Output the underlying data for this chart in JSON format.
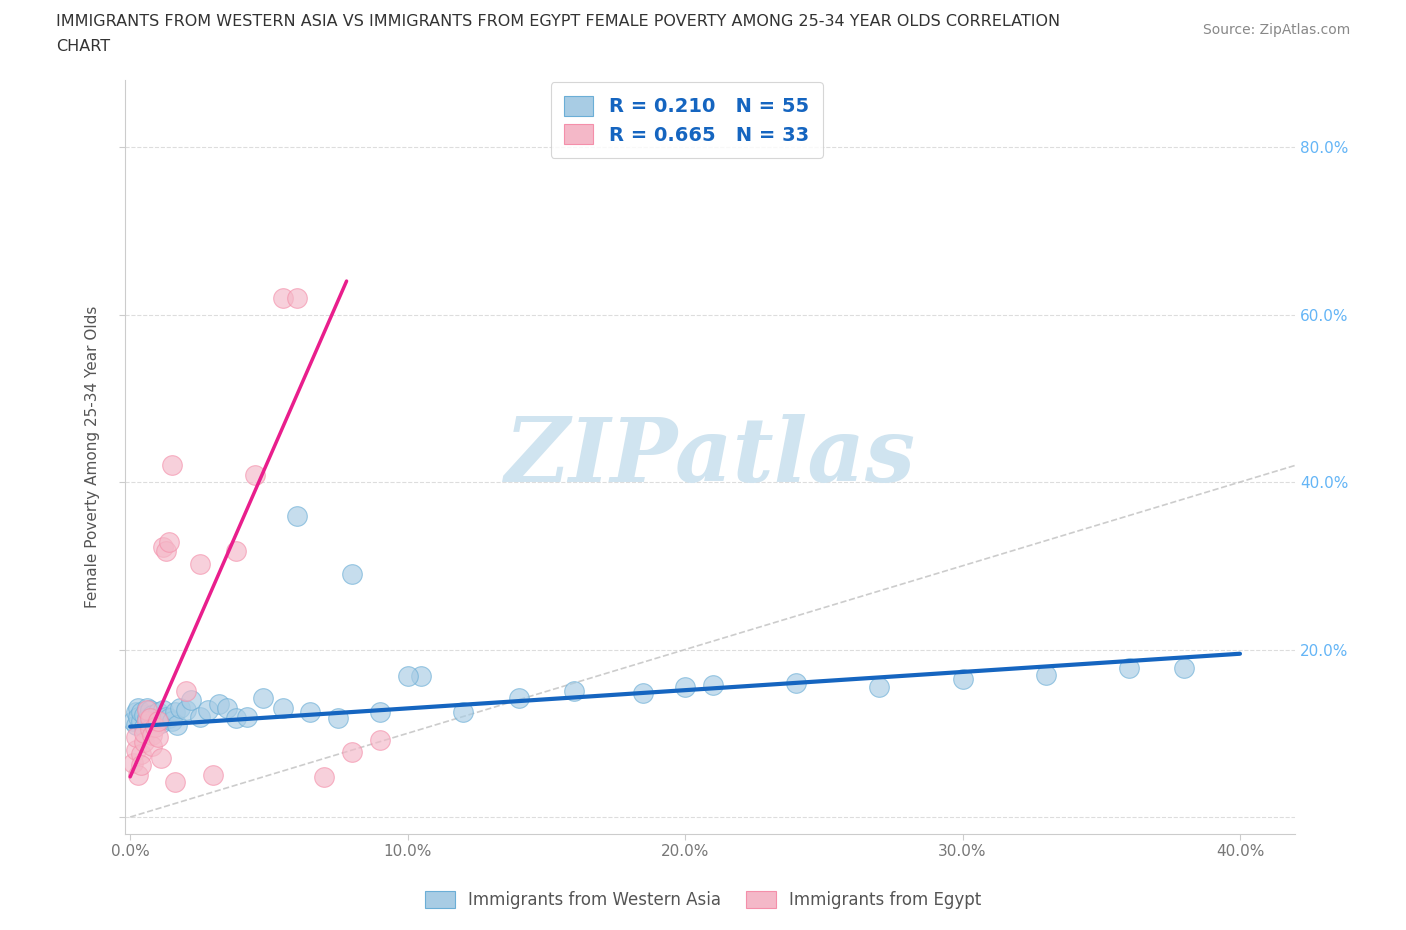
{
  "title_line1": "IMMIGRANTS FROM WESTERN ASIA VS IMMIGRANTS FROM EGYPT FEMALE POVERTY AMONG 25-34 YEAR OLDS CORRELATION",
  "title_line2": "CHART",
  "source_text": "Source: ZipAtlas.com",
  "ylabel": "Female Poverty Among 25-34 Year Olds",
  "xlim": [
    -0.002,
    0.42
  ],
  "ylim": [
    -0.02,
    0.88
  ],
  "xticks": [
    0.0,
    0.1,
    0.2,
    0.3,
    0.4
  ],
  "xticklabels": [
    "0.0%",
    "10.0%",
    "20.0%",
    "30.0%",
    "40.0%"
  ],
  "yticks": [
    0.0,
    0.2,
    0.4,
    0.6,
    0.8
  ],
  "yticklabels_right": [
    "",
    "20.0%",
    "40.0%",
    "60.0%",
    "80.0%"
  ],
  "blue_scatter_color": "#a8cce4",
  "pink_scatter_color": "#f4b8c8",
  "blue_line_color": "#1565C0",
  "pink_line_color": "#e91e8c",
  "ref_line_color": "#c0c0c0",
  "watermark_text": "ZIPatlas",
  "watermark_color": "#d0e4f0",
  "legend_R_blue": "0.210",
  "legend_N_blue": "55",
  "legend_R_pink": "0.665",
  "legend_N_pink": "33",
  "legend_label_blue": "Immigrants from Western Asia",
  "legend_label_pink": "Immigrants from Egypt",
  "legend_text_color": "#1565C0",
  "blue_scatter_x": [
    0.001,
    0.002,
    0.002,
    0.003,
    0.003,
    0.004,
    0.004,
    0.005,
    0.005,
    0.006,
    0.006,
    0.007,
    0.007,
    0.008,
    0.008,
    0.009,
    0.01,
    0.01,
    0.011,
    0.012,
    0.013,
    0.014,
    0.015,
    0.016,
    0.017,
    0.018,
    0.02,
    0.022,
    0.025,
    0.028,
    0.032,
    0.035,
    0.038,
    0.042,
    0.048,
    0.055,
    0.065,
    0.075,
    0.09,
    0.105,
    0.12,
    0.14,
    0.16,
    0.185,
    0.21,
    0.24,
    0.27,
    0.3,
    0.33,
    0.36,
    0.38,
    0.06,
    0.08,
    0.1,
    0.2
  ],
  "blue_scatter_y": [
    0.115,
    0.125,
    0.11,
    0.13,
    0.12,
    0.115,
    0.125,
    0.108,
    0.122,
    0.118,
    0.13,
    0.112,
    0.128,
    0.115,
    0.122,
    0.118,
    0.125,
    0.115,
    0.112,
    0.128,
    0.12,
    0.118,
    0.115,
    0.125,
    0.11,
    0.13,
    0.128,
    0.14,
    0.12,
    0.128,
    0.135,
    0.13,
    0.118,
    0.12,
    0.142,
    0.13,
    0.125,
    0.118,
    0.125,
    0.168,
    0.125,
    0.142,
    0.15,
    0.148,
    0.158,
    0.16,
    0.155,
    0.165,
    0.17,
    0.178,
    0.178,
    0.36,
    0.29,
    0.168,
    0.155
  ],
  "pink_scatter_x": [
    0.001,
    0.002,
    0.002,
    0.003,
    0.004,
    0.004,
    0.005,
    0.005,
    0.006,
    0.006,
    0.007,
    0.007,
    0.008,
    0.008,
    0.009,
    0.01,
    0.01,
    0.011,
    0.012,
    0.013,
    0.014,
    0.015,
    0.02,
    0.025,
    0.03,
    0.038,
    0.045,
    0.055,
    0.06,
    0.07,
    0.08,
    0.09,
    0.016
  ],
  "pink_scatter_y": [
    0.065,
    0.08,
    0.095,
    0.05,
    0.075,
    0.062,
    0.09,
    0.1,
    0.115,
    0.128,
    0.105,
    0.118,
    0.098,
    0.085,
    0.108,
    0.095,
    0.115,
    0.07,
    0.322,
    0.318,
    0.328,
    0.42,
    0.15,
    0.302,
    0.05,
    0.318,
    0.408,
    0.62,
    0.62,
    0.048,
    0.078,
    0.092,
    0.042
  ],
  "blue_trend_x": [
    0.0,
    0.4
  ],
  "blue_trend_y": [
    0.108,
    0.195
  ],
  "pink_trend_x": [
    0.0,
    0.078
  ],
  "pink_trend_y": [
    0.048,
    0.64
  ],
  "ref_line_x": [
    0.0,
    0.88
  ],
  "ref_line_y": [
    0.0,
    0.88
  ]
}
